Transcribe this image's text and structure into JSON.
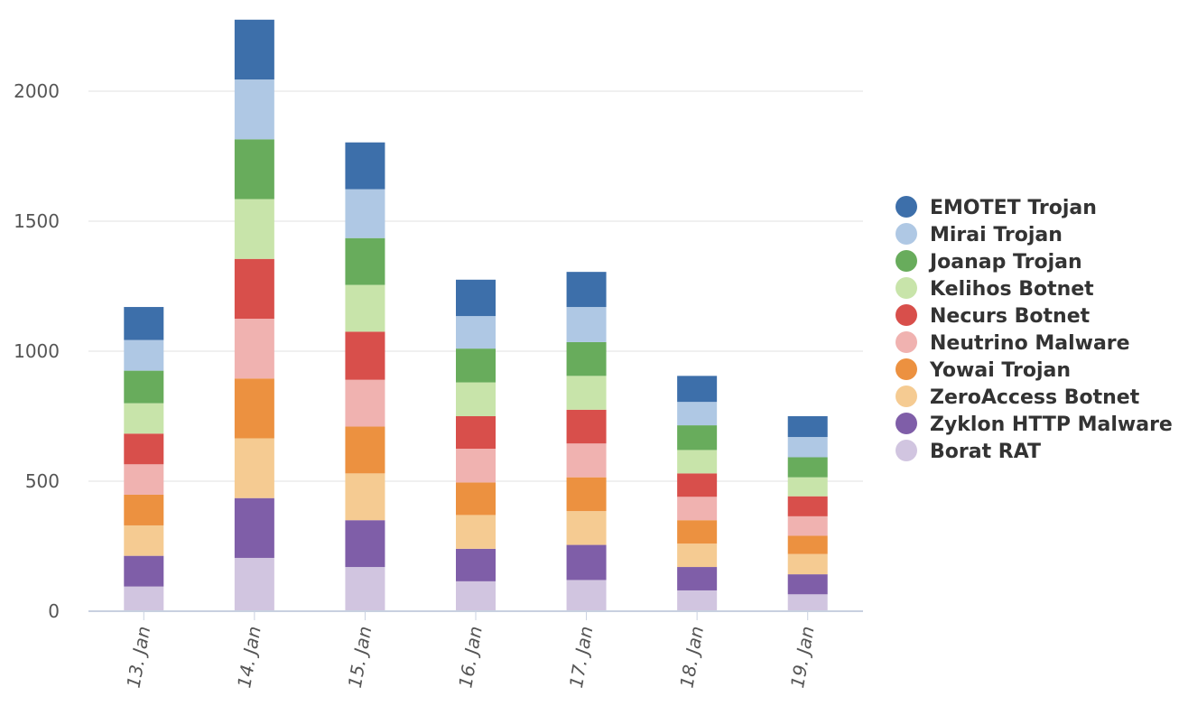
{
  "chart_data": {
    "type": "bar",
    "stacked": true,
    "categories": [
      "13. Jan",
      "14. Jan",
      "15. Jan",
      "16. Jan",
      "17. Jan",
      "18. Jan",
      "19. Jan"
    ],
    "series": [
      {
        "name": "Borat RAT",
        "color": "#d1c5e0",
        "values": [
          95,
          205,
          170,
          115,
          120,
          80,
          65
        ]
      },
      {
        "name": "Zyklon HTTP Malware",
        "color": "#7f5ea8",
        "values": [
          118,
          230,
          180,
          125,
          135,
          90,
          77
        ]
      },
      {
        "name": "ZeroAccess Botnet",
        "color": "#f5cb92",
        "values": [
          117,
          230,
          180,
          130,
          130,
          90,
          78
        ]
      },
      {
        "name": "Yowai Trojan",
        "color": "#ec9140",
        "values": [
          118,
          230,
          180,
          125,
          130,
          90,
          70
        ]
      },
      {
        "name": "Neutrino Malware",
        "color": "#f0b2b0",
        "values": [
          117,
          230,
          180,
          130,
          130,
          90,
          75
        ]
      },
      {
        "name": "Necurs Botnet",
        "color": "#d84f4b",
        "values": [
          118,
          230,
          185,
          125,
          130,
          90,
          77
        ]
      },
      {
        "name": "Kelihos Botnet",
        "color": "#c8e4aa",
        "values": [
          117,
          230,
          180,
          130,
          130,
          90,
          73
        ]
      },
      {
        "name": "Joanap Trojan",
        "color": "#68ac5c",
        "values": [
          125,
          230,
          180,
          130,
          130,
          95,
          77
        ]
      },
      {
        "name": "Mirai Trojan",
        "color": "#afc8e4",
        "values": [
          118,
          230,
          188,
          125,
          135,
          90,
          78
        ]
      },
      {
        "name": "EMOTET Trojan",
        "color": "#3d6faa",
        "values": [
          127,
          230,
          180,
          140,
          135,
          100,
          80
        ]
      }
    ],
    "legend_order": [
      "EMOTET Trojan",
      "Mirai Trojan",
      "Joanap Trojan",
      "Kelihos Botnet",
      "Necurs Botnet",
      "Neutrino Malware",
      "Yowai Trojan",
      "ZeroAccess Botnet",
      "Zyklon HTTP Malware",
      "Borat RAT"
    ],
    "yticks": [
      0,
      500,
      1000,
      1500,
      2000
    ],
    "ylim": [
      0,
      2270
    ],
    "grid": true,
    "legend_position": "right",
    "title": "",
    "xlabel": "",
    "ylabel": ""
  }
}
